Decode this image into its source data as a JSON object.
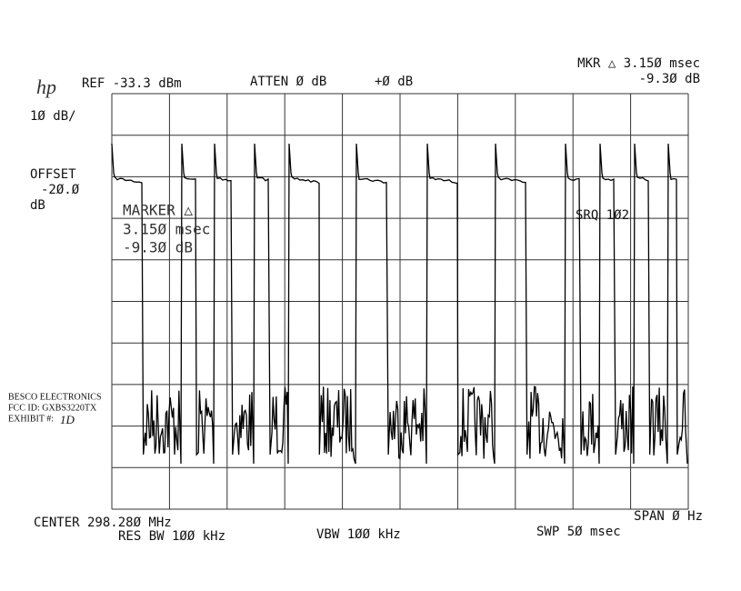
{
  "header": {
    "logo": "hp",
    "ref": "REF -33.3 dBm",
    "atten": "ATTEN Ø dB",
    "offset_db": "+Ø dB",
    "mkr": "MKR △ 3.15Ø msec",
    "mkr_level": "-9.3Ø dB"
  },
  "left": {
    "scale": "1Ø dB/",
    "offset": "OFFSET",
    "offset_value": "-2Ø.Ø",
    "offset_unit": "dB"
  },
  "marker_box": {
    "title": "MARKER △",
    "time": "3.15Ø msec",
    "level": "-9.3Ø dB"
  },
  "srq": "SRQ 1Ø2",
  "stamp": {
    "company": "BESCO ELECTRONICS",
    "fcc": "FCC ID:  GXBS3220TX",
    "exhibit": "EXHIBIT #:",
    "exhibit_no": "1D"
  },
  "footer": {
    "center": "CENTER 298.28Ø MHz",
    "span": "SPAN Ø Hz",
    "res_bw": "RES BW 1ØØ kHz",
    "vbw": "VBW 1ØØ kHz",
    "swp": "SWP 5Ø msec"
  }
}
